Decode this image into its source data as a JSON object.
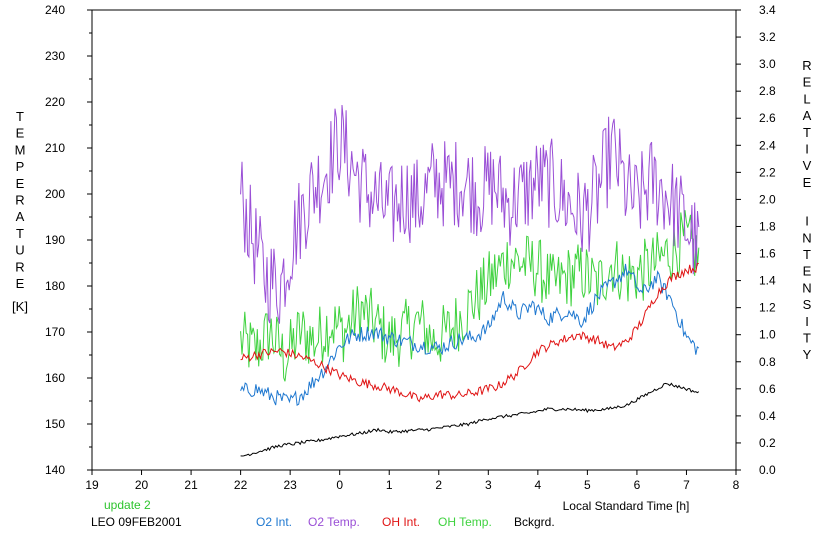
{
  "colors": {
    "o2_int": "#1f78d0",
    "o2_temp": "#9a4fd6",
    "oh_int": "#e01414",
    "oh_temp": "#3fd23f",
    "bckgrd": "#000000",
    "update": "#2ec42e"
  },
  "footer": {
    "update_label": "update 2",
    "site_date": "LEO 09FEB2001"
  },
  "chart_data": {
    "type": "line",
    "title": "",
    "xlabel": "Local Standard Time [h]",
    "ylabel_left_letters": [
      "T",
      "E",
      "M",
      "P",
      "E",
      "R",
      "A",
      "T",
      "U",
      "R",
      "E"
    ],
    "ylabel_left_unit": "[K]",
    "ylabel_right_letters": [
      "R",
      "E",
      "L",
      "A",
      "T",
      "I",
      "V",
      "E",
      "I",
      "N",
      "T",
      "E",
      "N",
      "S",
      "I",
      "T",
      "Y"
    ],
    "x_range": [
      19,
      32
    ],
    "x_tick_labels": [
      "19",
      "20",
      "21",
      "22",
      "23",
      "0",
      "1",
      "2",
      "3",
      "4",
      "5",
      "6",
      "7",
      "8"
    ],
    "y_left_range": [
      140,
      240
    ],
    "y_left_ticks": [
      "140",
      "150",
      "160",
      "170",
      "180",
      "190",
      "200",
      "210",
      "220",
      "230",
      "240"
    ],
    "y_right_range": [
      0.0,
      3.4
    ],
    "y_right_ticks": [
      "0.0",
      "0.2",
      "0.4",
      "0.6",
      "0.8",
      "1.0",
      "1.2",
      "1.4",
      "1.6",
      "1.8",
      "2.0",
      "2.2",
      "2.4",
      "2.6",
      "2.8",
      "3.0",
      "3.2",
      "3.4"
    ],
    "grid": false,
    "legend_placement": "bottom",
    "series": [
      {
        "name": "O2 Int.",
        "axis": "right",
        "color_key": "o2_int",
        "noise": 0.06,
        "x": [
          22.0,
          22.3,
          22.6,
          23.0,
          23.3,
          23.7,
          24.0,
          24.3,
          24.7,
          25.0,
          25.3,
          25.7,
          26.0,
          26.4,
          26.7,
          27.0,
          27.3,
          27.6,
          27.9,
          28.2,
          28.6,
          28.9,
          29.2,
          29.5,
          29.8,
          30.1,
          30.4,
          30.7,
          31.0,
          31.25
        ],
        "y": [
          0.58,
          0.6,
          0.55,
          0.5,
          0.58,
          0.75,
          0.92,
          1.0,
          1.02,
          0.98,
          0.95,
          0.92,
          0.9,
          0.96,
          0.98,
          1.05,
          1.28,
          1.15,
          1.22,
          1.12,
          1.18,
          1.1,
          1.28,
          1.38,
          1.48,
          1.3,
          1.42,
          1.25,
          0.98,
          0.88
        ]
      },
      {
        "name": "O2 Temp.",
        "axis": "left",
        "color_key": "o2_temp",
        "noise": 10,
        "x": [
          22.0,
          22.2,
          22.5,
          22.8,
          23.1,
          23.4,
          23.7,
          24.0,
          24.3,
          24.6,
          25.0,
          25.3,
          25.6,
          25.9,
          26.2,
          26.5,
          26.8,
          27.1,
          27.4,
          27.7,
          28.0,
          28.3,
          28.6,
          28.9,
          29.2,
          29.5,
          29.8,
          30.0,
          30.3,
          30.6,
          30.9,
          31.25
        ],
        "y": [
          200,
          192,
          182,
          180,
          192,
          200,
          205,
          212,
          205,
          200,
          196,
          200,
          198,
          203,
          202,
          203,
          200,
          202,
          198,
          200,
          203,
          202,
          198,
          195,
          200,
          210,
          200,
          198,
          203,
          200,
          195,
          188
        ]
      },
      {
        "name": "OH Int.",
        "axis": "right",
        "color_key": "oh_int",
        "noise": 0.035,
        "x": [
          22.0,
          22.4,
          22.8,
          23.2,
          23.6,
          24.0,
          24.4,
          24.8,
          25.2,
          25.6,
          26.0,
          26.4,
          26.8,
          27.2,
          27.6,
          28.0,
          28.4,
          28.8,
          29.2,
          29.5,
          29.8,
          30.1,
          30.4,
          30.7,
          31.0,
          31.25
        ],
        "y": [
          0.82,
          0.86,
          0.88,
          0.84,
          0.78,
          0.7,
          0.65,
          0.62,
          0.58,
          0.52,
          0.56,
          0.55,
          0.58,
          0.62,
          0.72,
          0.88,
          0.95,
          1.0,
          0.96,
          0.9,
          0.95,
          1.1,
          1.3,
          1.42,
          1.48,
          1.5
        ]
      },
      {
        "name": "OH Temp.",
        "axis": "left",
        "color_key": "oh_temp",
        "noise": 7,
        "x": [
          22.0,
          22.3,
          22.6,
          22.9,
          23.2,
          23.5,
          23.8,
          24.1,
          24.4,
          24.7,
          25.0,
          25.3,
          25.6,
          25.9,
          26.2,
          26.5,
          26.8,
          27.1,
          27.4,
          27.7,
          28.0,
          28.3,
          28.6,
          28.9,
          29.2,
          29.5,
          29.8,
          30.1,
          30.4,
          30.7,
          31.0,
          31.25
        ],
        "y": [
          168,
          166,
          170,
          164,
          170,
          168,
          172,
          170,
          175,
          172,
          168,
          170,
          172,
          168,
          170,
          174,
          178,
          182,
          186,
          185,
          184,
          180,
          182,
          183,
          180,
          185,
          182,
          183,
          185,
          188,
          190,
          186
        ]
      },
      {
        "name": "Bckgrd.",
        "axis": "right",
        "color_key": "bckgrd",
        "noise": 0.012,
        "x": [
          22.0,
          22.4,
          22.8,
          23.2,
          23.6,
          24.0,
          24.4,
          24.8,
          25.0,
          25.4,
          25.8,
          26.2,
          26.6,
          27.0,
          27.4,
          27.8,
          28.2,
          28.6,
          29.0,
          29.4,
          29.8,
          30.0,
          30.2,
          30.4,
          30.6,
          30.8,
          31.0,
          31.25
        ],
        "y": [
          0.1,
          0.14,
          0.18,
          0.2,
          0.22,
          0.25,
          0.27,
          0.3,
          0.28,
          0.29,
          0.3,
          0.32,
          0.34,
          0.38,
          0.4,
          0.42,
          0.45,
          0.45,
          0.44,
          0.45,
          0.48,
          0.52,
          0.56,
          0.6,
          0.64,
          0.62,
          0.6,
          0.57
        ]
      }
    ]
  }
}
